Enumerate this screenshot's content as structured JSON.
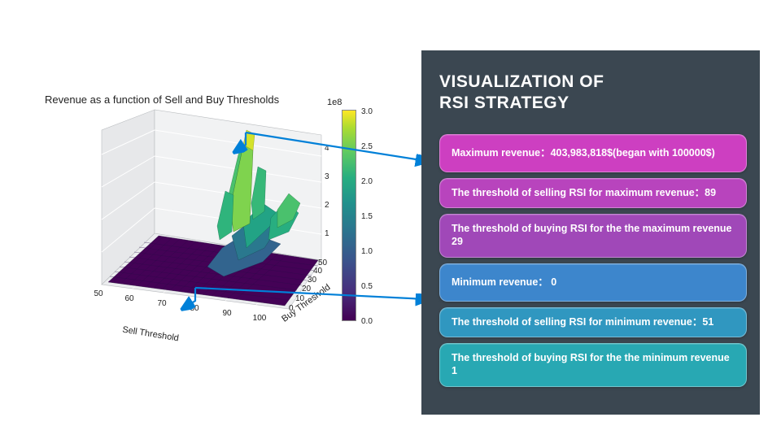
{
  "chart": {
    "type": "3d_surface",
    "title": "Revenue as a function of Sell and Buy Thresholds",
    "scale_label": "1e8",
    "xlabel": "Sell Threshold",
    "ylabel": "Buy Threshold",
    "title_fontsize": 13,
    "label_fontsize": 11,
    "x_range": [
      50,
      100
    ],
    "y_range": [
      0,
      50
    ],
    "z_range_display": [
      0,
      4
    ],
    "x_ticks": [
      50,
      60,
      70,
      80,
      90,
      100
    ],
    "y_ticks": [
      0,
      10,
      20,
      30,
      40,
      50
    ],
    "z_ticks": [
      1,
      2,
      3,
      4
    ],
    "surface_colormap": "viridis",
    "floor_color": "#440256",
    "peak_color": "#d4e22a",
    "mesh_line_color": "#1f1033",
    "peak_at": {
      "sell": 89,
      "buy": 29,
      "z_label": "4"
    },
    "min_at": {
      "sell": 51,
      "buy": 1,
      "z_label": "0"
    },
    "pane_color": "#ecedef",
    "pane_edge_color": "#b9bcbf",
    "z_axis_scale_suffix": "1e8"
  },
  "colorbar": {
    "min": 0.0,
    "max": 3.0,
    "ticks": [
      "0.0",
      "0.5",
      "1.0",
      "1.5",
      "2.0",
      "2.5",
      "3.0"
    ],
    "gradient_stops": [
      "#440154",
      "#472f7d",
      "#3b528b",
      "#2c728e",
      "#21918c",
      "#28ae80",
      "#5ec962",
      "#addc30",
      "#fde725"
    ]
  },
  "arrows": {
    "color": "#0080d8",
    "stroke_width": 2.2,
    "top": {
      "from_chart": "peak",
      "to_card_index": 0
    },
    "bottom": {
      "from_chart": "floor",
      "to_card_index": 3
    }
  },
  "panel": {
    "background_color": "#3b4751",
    "title": "VISUALIZATION OF\nRSI STRATEGY",
    "title_color": "#ffffff",
    "title_fontsize": 21,
    "cards": [
      {
        "text": "Maximum revenue：403,983,818$(began with 100000$)",
        "bg": "#cd3fc1",
        "height": "lg"
      },
      {
        "text": "The threshold of selling RSI for maximum revenue：89",
        "bg": "#b844bd"
      },
      {
        "text": "The threshold of buying RSI for the the maximum revenue 29",
        "bg": "#a048b8"
      },
      {
        "text": "Minimum revenue： 0",
        "bg": "#3d86cc",
        "height": "lg"
      },
      {
        "text": "The threshold of selling RSI for minimum revenue：51",
        "bg": "#3097c0"
      },
      {
        "text": "The threshold of buying RSI for the the minimum revenue 1",
        "bg": "#28a8b3"
      }
    ]
  }
}
